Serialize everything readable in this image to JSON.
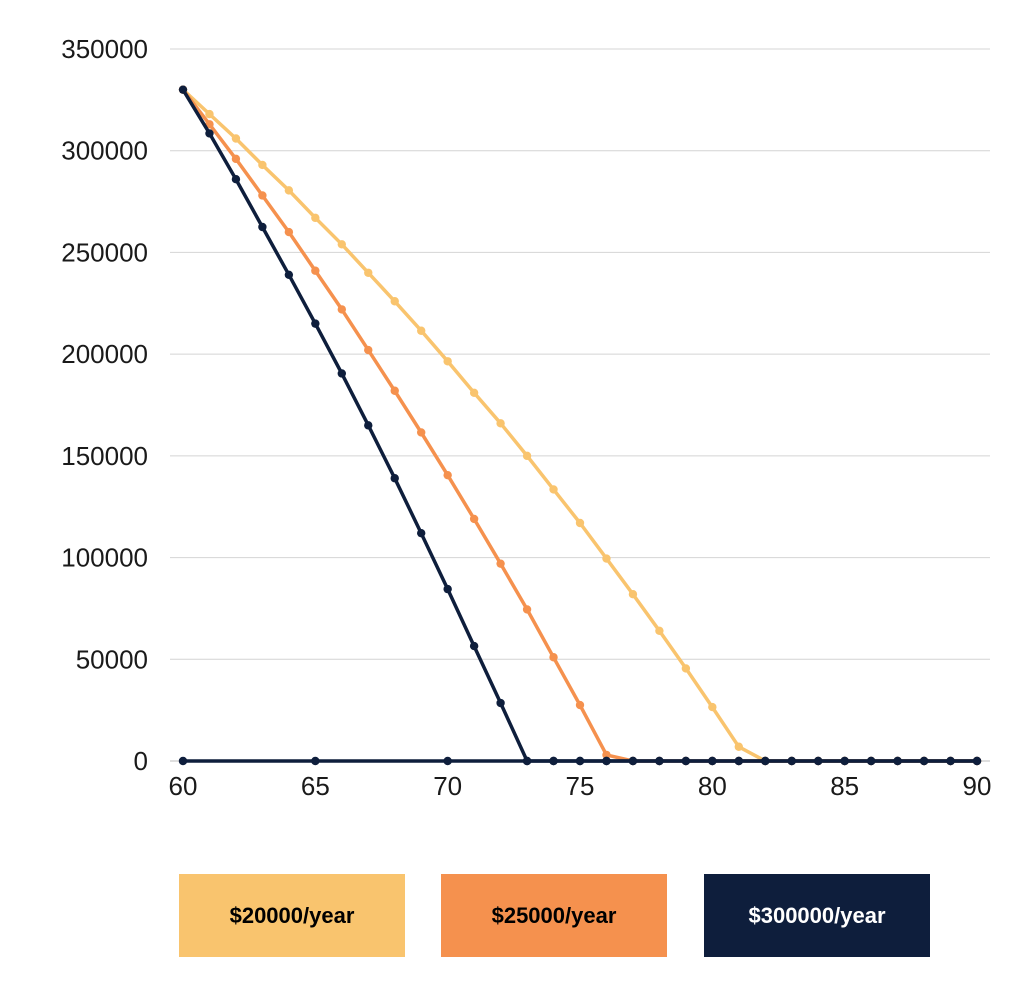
{
  "chart_data": {
    "type": "line",
    "title": "",
    "xlabel": "",
    "ylabel": "",
    "xlim": [
      60,
      90
    ],
    "ylim": [
      0,
      350000
    ],
    "xticks": [
      "60",
      "65",
      "70",
      "75",
      "80",
      "85",
      "90"
    ],
    "yticks": [
      "0",
      "50000",
      "100000",
      "150000",
      "200000",
      "250000",
      "300000",
      "350000"
    ],
    "grid": "horizontal",
    "legend_position": "bottom",
    "series": [
      {
        "name": "$20000/year",
        "color": "#F9C46E",
        "text_color": "#000000",
        "x": [
          60,
          61,
          62,
          63,
          64,
          65,
          66,
          67,
          68,
          69,
          70,
          71,
          72,
          73,
          74,
          75,
          76,
          77,
          78,
          79,
          80,
          81,
          82,
          83,
          84,
          85,
          86,
          87,
          88,
          89,
          90
        ],
        "y": [
          330000,
          318000,
          306000,
          293000,
          280500,
          267000,
          254000,
          240000,
          226000,
          211500,
          196500,
          181000,
          166000,
          150000,
          133500,
          117000,
          99500,
          82000,
          64000,
          45500,
          26500,
          7000,
          0,
          0,
          0,
          0,
          0,
          0,
          0,
          0,
          0
        ]
      },
      {
        "name": "$25000/year",
        "color": "#F5914E",
        "text_color": "#000000",
        "x": [
          60,
          61,
          62,
          63,
          64,
          65,
          66,
          67,
          68,
          69,
          70,
          71,
          72,
          73,
          74,
          75,
          76,
          77,
          78,
          79,
          80,
          81,
          82,
          83,
          84,
          85,
          86,
          87,
          88,
          89,
          90
        ],
        "y": [
          330000,
          313000,
          296000,
          278000,
          260000,
          241000,
          222000,
          202000,
          182000,
          161500,
          140500,
          119000,
          97000,
          74500,
          51000,
          27500,
          3000,
          0,
          0,
          0,
          0,
          0,
          0,
          0,
          0,
          0,
          0,
          0,
          0,
          0,
          0
        ]
      },
      {
        "name": "$300000/year",
        "color": "#0E1E3C",
        "text_color": "#ffffff",
        "x": [
          60,
          61,
          62,
          63,
          64,
          65,
          66,
          67,
          68,
          69,
          70,
          71,
          72,
          73,
          74,
          75,
          76,
          77,
          78,
          79,
          80,
          81,
          82,
          83,
          84,
          85,
          86,
          87,
          88,
          89,
          90
        ],
        "y": [
          330000,
          308500,
          286000,
          262500,
          239000,
          215000,
          190500,
          165000,
          139000,
          112000,
          84500,
          56500,
          28500,
          0,
          0,
          0,
          0,
          0,
          0,
          0,
          0,
          0,
          0,
          0,
          0,
          0,
          0,
          0,
          0,
          0,
          0
        ]
      },
      {
        "name": "",
        "color": "#0E1E3C",
        "x": [
          60,
          65,
          70,
          73,
          74,
          75,
          76,
          77,
          78,
          79,
          80,
          81,
          82,
          83,
          84,
          85,
          86,
          87,
          88,
          89,
          90
        ],
        "y": [
          0,
          0,
          0,
          0,
          0,
          0,
          0,
          0,
          0,
          0,
          0,
          0,
          0,
          0,
          0,
          0,
          0,
          0,
          0,
          0,
          0
        ]
      }
    ]
  }
}
